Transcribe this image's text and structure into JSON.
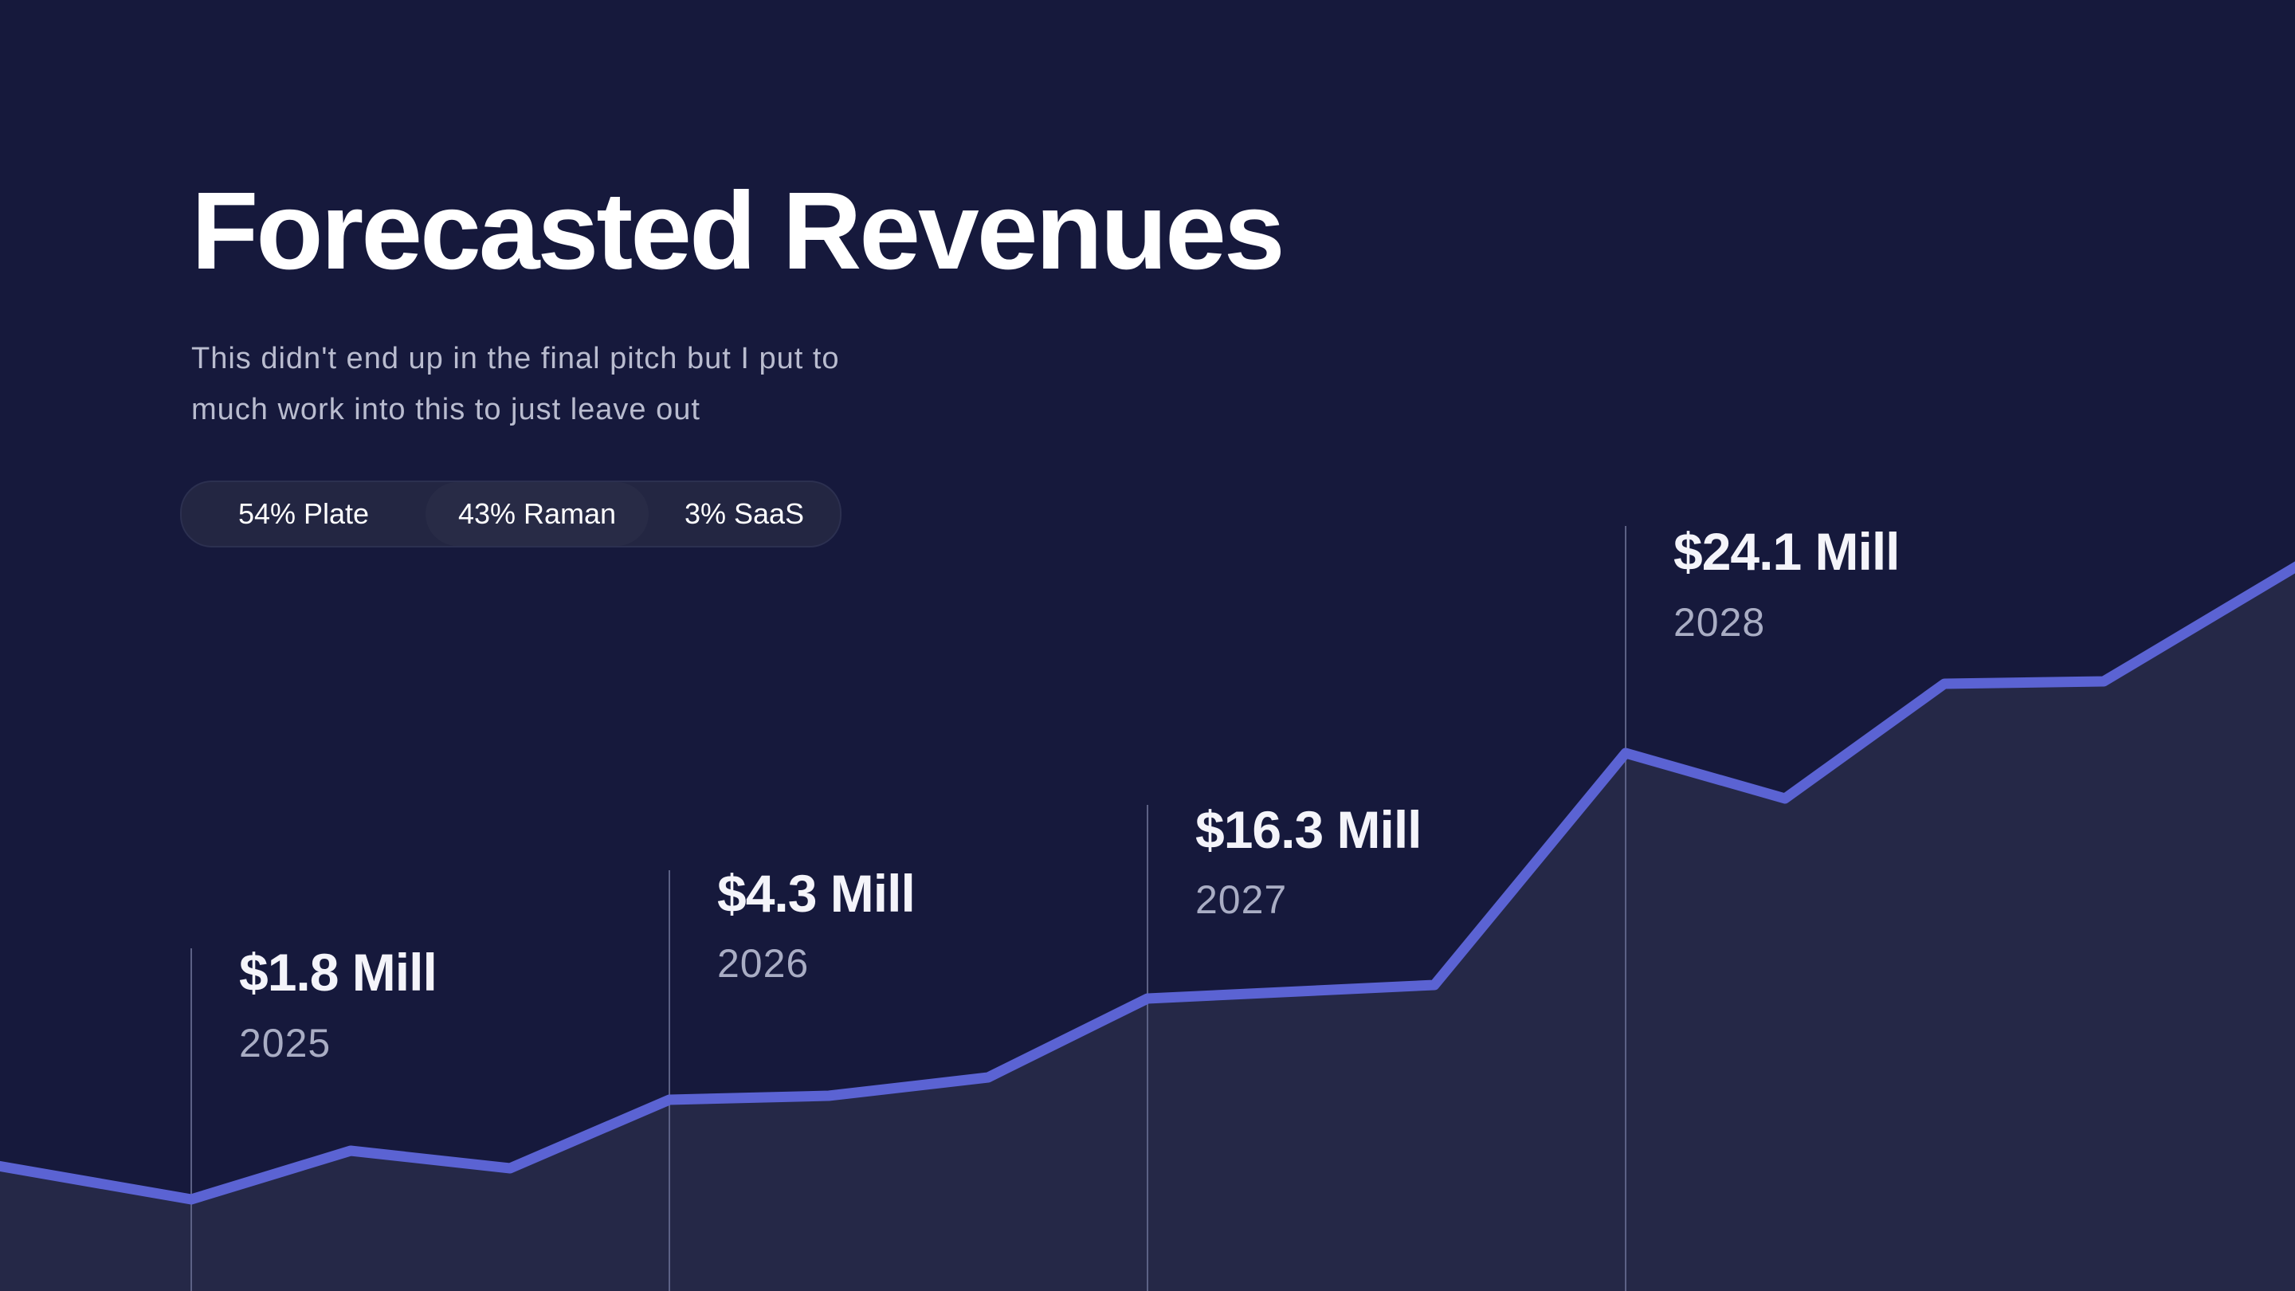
{
  "slide": {
    "title": "Forecasted Revenues",
    "subtitle_lines": [
      "This didn't end up in the final pitch but I put to",
      "much work into this to just leave out"
    ]
  },
  "segments": [
    {
      "label": "54% Plate"
    },
    {
      "label": "43% Raman"
    },
    {
      "label": "3% SaaS"
    }
  ],
  "chart_data": {
    "type": "area",
    "title": "Forecasted Revenues",
    "xlabel": "",
    "ylabel": "",
    "grid": false,
    "annotations": [
      {
        "year": "2025",
        "value": 1.8,
        "label": "$1.8 Mill"
      },
      {
        "year": "2026",
        "value": 4.3,
        "label": "$4.3 Mill"
      },
      {
        "year": "2027",
        "value": 16.3,
        "label": "$16.3 Mill"
      },
      {
        "year": "2028",
        "value": 24.1,
        "label": "$24.1 Mill"
      }
    ],
    "colors": {
      "line": "#5b63d3",
      "area": "#252847",
      "background": "#16193c",
      "marker": "#5c6185"
    }
  }
}
